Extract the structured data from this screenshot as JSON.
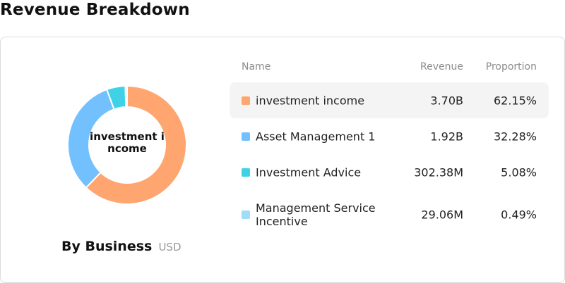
{
  "page_title": "Revenue Breakdown",
  "caption": {
    "main": "By Business",
    "unit": "USD"
  },
  "center_label": "investment income",
  "table": {
    "headers": {
      "name": "Name",
      "revenue": "Revenue",
      "proportion": "Proportion"
    },
    "rows": [
      {
        "name": "investment income",
        "revenue": "3.70B",
        "proportion": "62.15%",
        "color": "#FFA56F"
      },
      {
        "name": "Asset Management 1",
        "revenue": "1.92B",
        "proportion": "32.28%",
        "color": "#73C0FF"
      },
      {
        "name": "Investment Advice",
        "revenue": "302.38M",
        "proportion": "5.08%",
        "color": "#3FD1E6"
      },
      {
        "name": "Management Service Incentive",
        "revenue": "29.06M",
        "proportion": "0.49%",
        "color": "#9FDDFA"
      }
    ]
  },
  "chart_data": {
    "type": "pie",
    "variant": "donut",
    "title": "By Business",
    "unit": "USD",
    "highlighted": "investment income",
    "categories": [
      "investment income",
      "Asset Management 1",
      "Investment Advice",
      "Management Service Incentive"
    ],
    "values": [
      3.7,
      1.92,
      0.30238,
      0.02906
    ],
    "value_unit": "B",
    "proportions": [
      62.15,
      32.28,
      5.08,
      0.49
    ],
    "colors": [
      "#FFA56F",
      "#73C0FF",
      "#3FD1E6",
      "#9FDDFA"
    ]
  }
}
